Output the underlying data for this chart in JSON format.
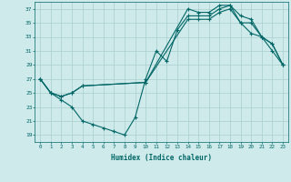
{
  "bg_color": "#ceeaea",
  "grid_color": "#aacece",
  "line_color": "#006666",
  "xlabel": "Humidex (Indice chaleur)",
  "xlim": [
    -0.5,
    23.5
  ],
  "ylim": [
    18,
    38
  ],
  "yticks": [
    19,
    21,
    23,
    25,
    27,
    29,
    31,
    33,
    35,
    37
  ],
  "xticks": [
    0,
    1,
    2,
    3,
    4,
    5,
    6,
    7,
    8,
    9,
    10,
    11,
    12,
    13,
    14,
    15,
    16,
    17,
    18,
    19,
    20,
    21,
    22,
    23
  ],
  "line1_x": [
    0,
    1,
    2,
    3,
    4,
    5,
    6,
    7,
    8,
    9,
    10,
    11,
    12,
    13,
    14,
    15,
    16,
    17,
    18,
    19,
    20,
    21,
    22,
    23
  ],
  "line1_y": [
    27,
    25,
    24,
    23,
    21,
    20.5,
    20,
    19.5,
    19,
    21.5,
    27,
    31,
    29.5,
    34,
    36,
    36,
    36,
    37,
    37.5,
    35,
    35,
    33,
    31,
    29
  ],
  "line2_x": [
    0,
    1,
    2,
    3,
    4,
    10,
    14,
    15,
    16,
    17,
    18,
    19,
    20,
    21,
    22,
    23
  ],
  "line2_y": [
    27,
    25,
    24.5,
    25,
    26,
    26.5,
    37,
    36.5,
    36.5,
    37.5,
    37.5,
    36,
    35.5,
    33,
    32,
    29
  ],
  "line3_x": [
    0,
    1,
    2,
    3,
    4,
    10,
    14,
    15,
    16,
    17,
    18,
    19,
    20,
    21,
    22,
    23
  ],
  "line3_y": [
    27,
    25,
    24.5,
    25,
    26,
    26.5,
    35.5,
    35.5,
    35.5,
    36.5,
    37,
    35,
    33.5,
    33,
    32,
    29
  ]
}
